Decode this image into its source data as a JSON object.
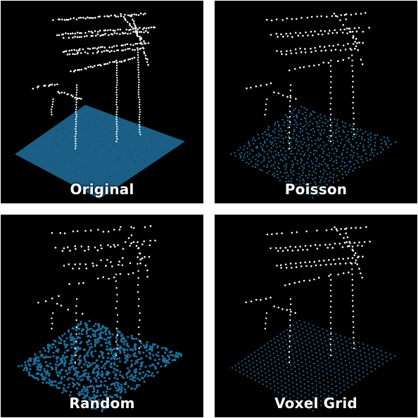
{
  "panels": [
    {
      "id": "original",
      "label": "Original"
    },
    {
      "id": "poisson",
      "label": "Poisson"
    },
    {
      "id": "random",
      "label": "Random"
    },
    {
      "id": "voxel",
      "label": "Voxel Grid"
    }
  ],
  "colors": {
    "background": "#000000",
    "separator": "#ffffff",
    "ground_points": "#1f6f9a",
    "ground_surface": "#1b5f86",
    "structure_points": "#ffffff",
    "label_text": "#ffffff"
  }
}
